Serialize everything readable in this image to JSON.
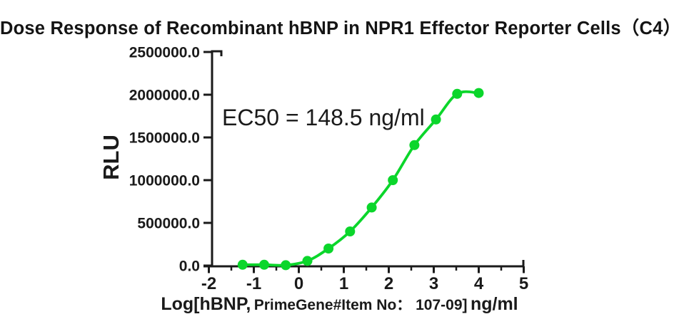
{
  "page": {
    "background": "#ffffff"
  },
  "title": "Dose Response of Recombinant hBNP in NPR1 Effector Reporter Cells（C4）",
  "annotation": "EC50 = 148.5 ng/ml",
  "colors": {
    "curve_green": "#0bd62b",
    "axis": "#1a1a1a",
    "text": "#1a1a1a",
    "background": "#ffffff"
  },
  "chart_data": {
    "type": "scatter",
    "title": "Dose Response of Recombinant hBNP in NPR1 Effector Reporter Cells（C4）",
    "xlabel": "Log[hBNP, PrimeGene#Item No： 107-09] ng/ml",
    "xlabel_parts": {
      "lead": "Log[hBNP,",
      "mid": "PrimeGene#Item No： 107-09]",
      "tail": "ng/ml"
    },
    "ylabel": "RLU",
    "annotation": "EC50 = 148.5 ng/ml",
    "ec50_ng_ml": 148.5,
    "xlim": [
      -2,
      5
    ],
    "ylim": [
      0,
      2500000
    ],
    "x_ticks": [
      -2,
      -1,
      0,
      1,
      2,
      3,
      4,
      5
    ],
    "x_tick_labels": [
      "-2",
      "-1",
      "0",
      "1",
      "2",
      "3",
      "4",
      "5"
    ],
    "x_minor_ticks": [
      -1.5,
      -0.5,
      0.5,
      1.5,
      2.5,
      3.5,
      4.5
    ],
    "y_ticks": [
      0,
      500000,
      1000000,
      1500000,
      2000000,
      2500000
    ],
    "y_tick_labels": [
      "0.0",
      "500000.0",
      "1000000.0",
      "1500000.0",
      "2000000.0",
      "2500000.0"
    ],
    "grid": false,
    "legend": false,
    "curve_fit": "sigmoidal dose-response",
    "series": [
      {
        "name": "hBNP",
        "marker_color": "#0bd62b",
        "line_color": "#0bd62b",
        "points": [
          {
            "log_conc": -1.25,
            "rlu": 10000
          },
          {
            "log_conc": -0.77,
            "rlu": 10000
          },
          {
            "log_conc": -0.29,
            "rlu": 5000
          },
          {
            "log_conc": 0.19,
            "rlu": 55000
          },
          {
            "log_conc": 0.66,
            "rlu": 200000
          },
          {
            "log_conc": 1.14,
            "rlu": 400000
          },
          {
            "log_conc": 1.62,
            "rlu": 680000
          },
          {
            "log_conc": 2.09,
            "rlu": 1000000
          },
          {
            "log_conc": 2.57,
            "rlu": 1410000
          },
          {
            "log_conc": 3.05,
            "rlu": 1710000
          },
          {
            "log_conc": 3.52,
            "rlu": 2010000
          },
          {
            "log_conc": 4.0,
            "rlu": 2020000
          }
        ]
      }
    ]
  }
}
